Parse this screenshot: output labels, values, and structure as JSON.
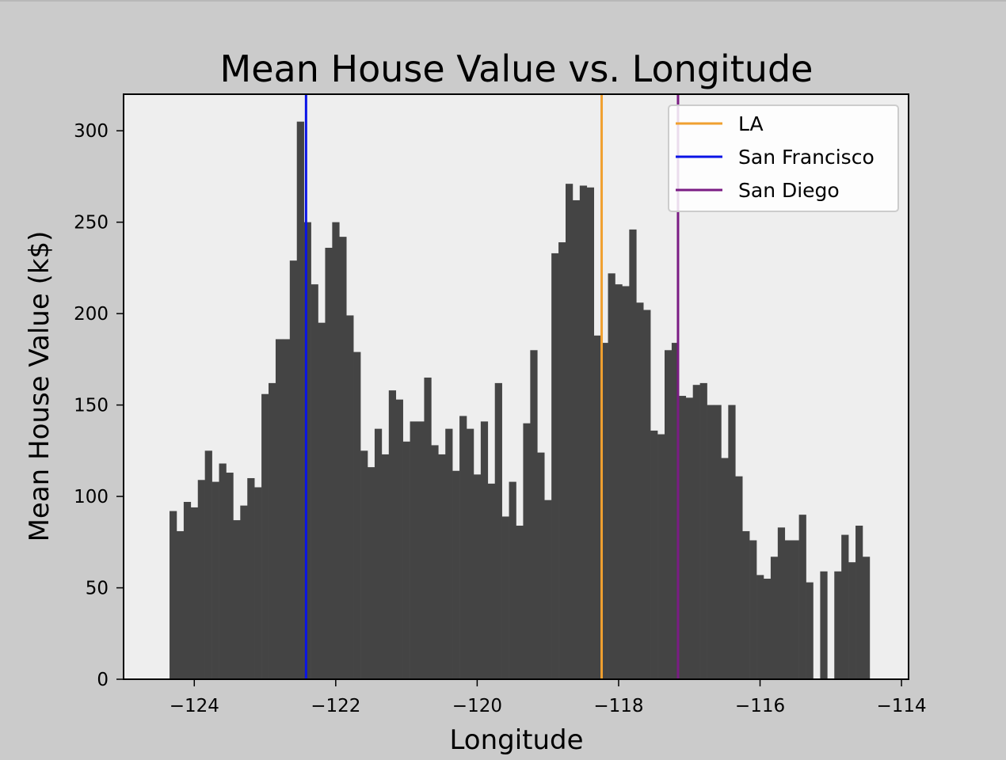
{
  "chart_data": {
    "type": "bar",
    "title": "Mean House Value vs. Longitude",
    "xlabel": "Longitude",
    "ylabel": "Mean House Value (k$)",
    "xlim": [
      -125,
      -113.9
    ],
    "ylim": [
      0,
      320
    ],
    "grid": false,
    "legend_position": "top-right",
    "bar_color": "#444444",
    "plot_background": "#eeeeee",
    "figure_background": "#cbcbcb",
    "x_ticks": [
      -124,
      -122,
      -120,
      -118,
      -116,
      -114
    ],
    "x_tick_labels": [
      "−124",
      "−122",
      "−120",
      "−118",
      "−116",
      "−114"
    ],
    "y_ticks": [
      0,
      50,
      100,
      150,
      200,
      250,
      300
    ],
    "y_tick_labels": [
      "0",
      "50",
      "100",
      "150",
      "200",
      "250",
      "300"
    ],
    "bins": {
      "start": -124.35,
      "width": 0.1,
      "values": [
        92,
        81,
        97,
        94,
        109,
        125,
        108,
        118,
        113,
        87,
        95,
        110,
        105,
        156,
        162,
        186,
        186,
        229,
        305,
        250,
        216,
        195,
        236,
        250,
        242,
        199,
        179,
        125,
        116,
        137,
        123,
        158,
        153,
        130,
        141,
        141,
        165,
        128,
        123,
        137,
        114,
        144,
        137,
        112,
        141,
        107,
        162,
        89,
        108,
        84,
        140,
        180,
        124,
        98,
        233,
        239,
        271,
        262,
        270,
        269,
        188,
        184,
        222,
        216,
        215,
        246,
        206,
        202,
        136,
        134,
        180,
        184,
        155,
        154,
        161,
        162,
        150,
        150,
        121,
        150,
        111,
        81,
        76,
        57,
        55,
        67,
        83,
        76,
        76,
        90,
        53,
        0,
        59,
        0,
        59,
        79,
        64,
        84,
        67
      ]
    },
    "reference_lines": [
      {
        "name": "LA",
        "x": -118.24,
        "color": "#f0a030"
      },
      {
        "name": "San Francisco",
        "x": -122.42,
        "color": "#0a14e6"
      },
      {
        "name": "San Diego",
        "x": -117.16,
        "color": "#7a1c84"
      }
    ]
  }
}
